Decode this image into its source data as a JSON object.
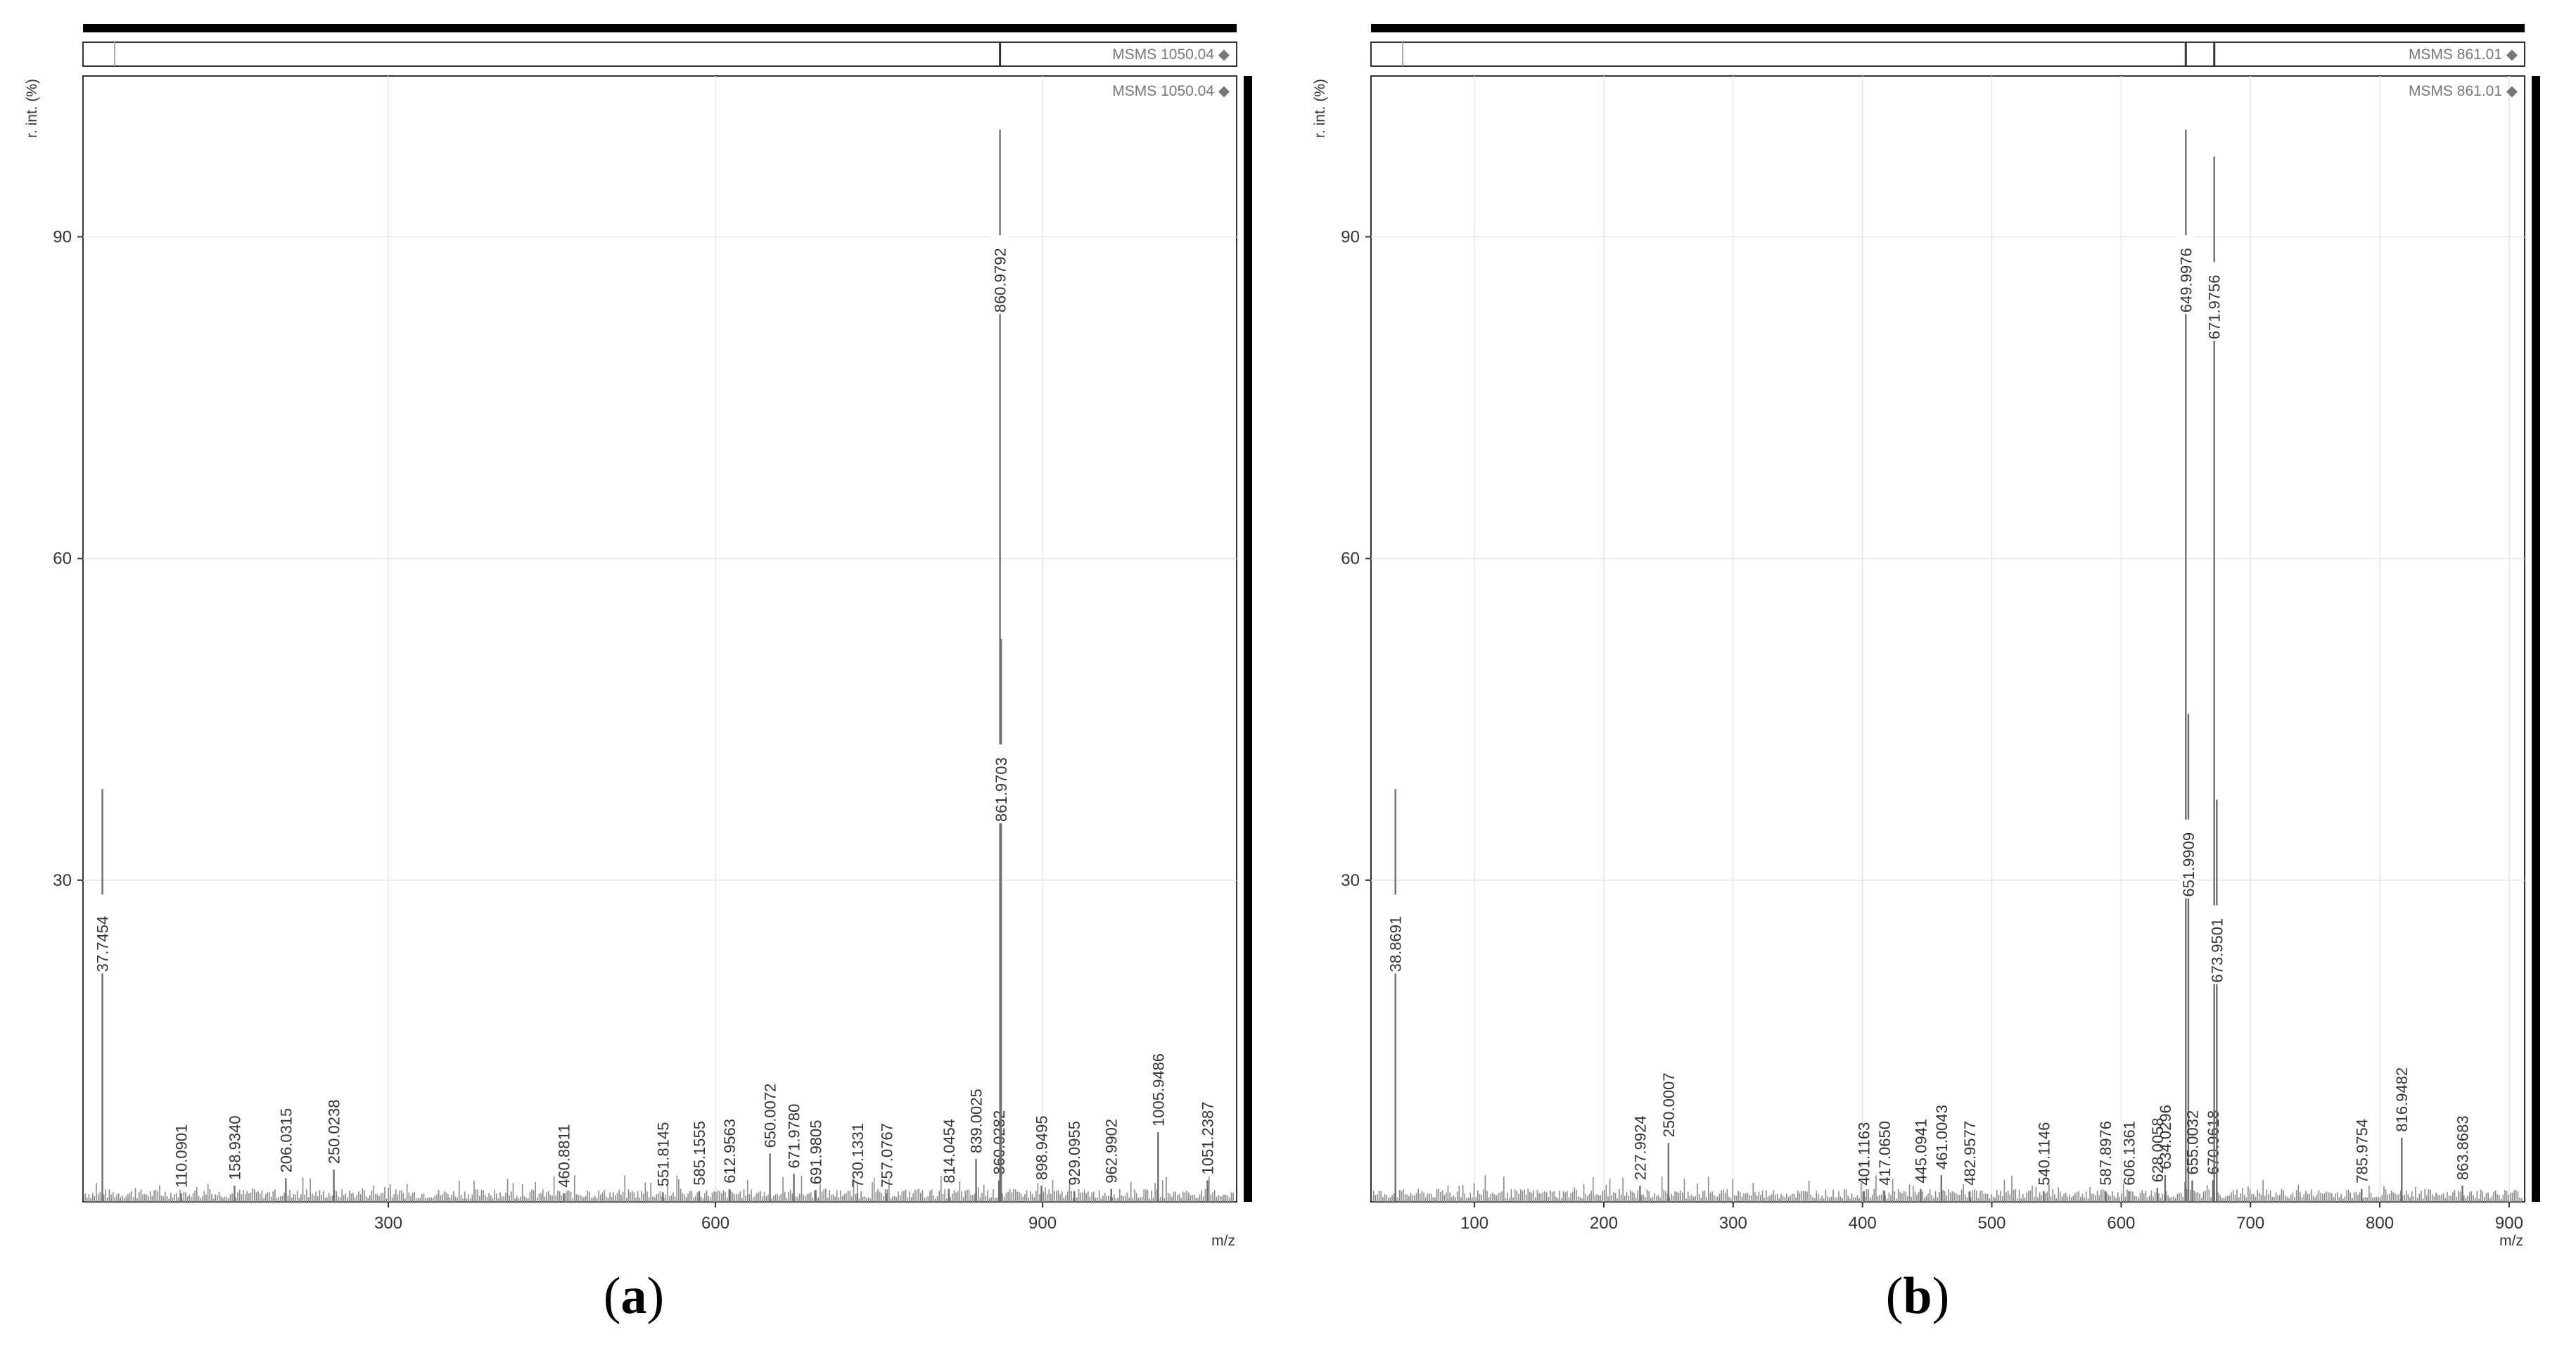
{
  "panels": [
    {
      "label_open": "(",
      "label_letter": "a",
      "label_close": ")",
      "header_label": "MSMS 1050.04",
      "plot_label": "MSMS 1050.04",
      "chart_data": {
        "type": "bar",
        "title": "",
        "xlabel": "m/z",
        "ylabel": "r. int. (%)",
        "xlim": [
          20,
          1078
        ],
        "ylim": [
          0,
          105
        ],
        "x_ticks": [
          300,
          600,
          900
        ],
        "y_ticks": [
          30,
          60,
          90
        ],
        "grid": true,
        "labeled_peaks": [
          {
            "mz": 37.7454,
            "label": "37.7454",
            "intensity": 38.5
          },
          {
            "mz": 110.0901,
            "label": "110.0901",
            "intensity": 0.8
          },
          {
            "mz": 158.934,
            "label": "158.9340",
            "intensity": 1.5
          },
          {
            "mz": 206.0315,
            "label": "206.0315",
            "intensity": 2.2
          },
          {
            "mz": 250.0238,
            "label": "250.0238",
            "intensity": 3.0
          },
          {
            "mz": 460.8811,
            "label": "460.8811",
            "intensity": 0.8
          },
          {
            "mz": 551.8145,
            "label": "551.8145",
            "intensity": 0.9
          },
          {
            "mz": 585.1555,
            "label": "585.1555",
            "intensity": 1.0
          },
          {
            "mz": 612.9563,
            "label": "612.9563",
            "intensity": 1.2
          },
          {
            "mz": 650.0072,
            "label": "650.0072",
            "intensity": 4.5
          },
          {
            "mz": 671.978,
            "label": "671.9780",
            "intensity": 2.6
          },
          {
            "mz": 691.9805,
            "label": "691.9805",
            "intensity": 1.1
          },
          {
            "mz": 730.1331,
            "label": "730.1331",
            "intensity": 0.8
          },
          {
            "mz": 757.0767,
            "label": "757.0767",
            "intensity": 0.8
          },
          {
            "mz": 814.0454,
            "label": "814.0454",
            "intensity": 1.2
          },
          {
            "mz": 839.0025,
            "label": "839.0025",
            "intensity": 4.0
          },
          {
            "mz": 860.0282,
            "label": "860.0282",
            "intensity": 2.0
          },
          {
            "mz": 860.9792,
            "label": "860.9792",
            "intensity": 100
          },
          {
            "mz": 861.9703,
            "label": "861.9703",
            "intensity": 52.5
          },
          {
            "mz": 898.9495,
            "label": "898.9495",
            "intensity": 1.5
          },
          {
            "mz": 929.0955,
            "label": "929.0955",
            "intensity": 1.0
          },
          {
            "mz": 962.9902,
            "label": "962.9902",
            "intensity": 1.2
          },
          {
            "mz": 1005.9486,
            "label": "1005.9486",
            "intensity": 6.5
          },
          {
            "mz": 1051.2387,
            "label": "1051.2387",
            "intensity": 2.0
          }
        ]
      }
    },
    {
      "label_open": "(",
      "label_letter": "b",
      "label_close": ")",
      "header_label": "MSMS 861.01",
      "plot_label": "MSMS 861.01",
      "chart_data": {
        "type": "bar",
        "title": "",
        "xlabel": "m/z",
        "ylabel": "r. int. (%)",
        "xlim": [
          20,
          912
        ],
        "ylim": [
          0,
          105
        ],
        "x_ticks": [
          100,
          200,
          300,
          400,
          500,
          600,
          700,
          800,
          900
        ],
        "y_ticks": [
          30,
          60,
          90
        ],
        "grid": true,
        "labeled_peaks": [
          {
            "mz": 38.8691,
            "label": "38.8691",
            "intensity": 38.5
          },
          {
            "mz": 227.9924,
            "label": "227.9924",
            "intensity": 1.5
          },
          {
            "mz": 250.0007,
            "label": "250.0007",
            "intensity": 5.5
          },
          {
            "mz": 401.1163,
            "label": "401.1163",
            "intensity": 1.0
          },
          {
            "mz": 417.065,
            "label": "417.0650",
            "intensity": 1.0
          },
          {
            "mz": 445.0941,
            "label": "445.0941",
            "intensity": 1.2
          },
          {
            "mz": 461.0043,
            "label": "461.0043",
            "intensity": 2.5
          },
          {
            "mz": 482.9577,
            "label": "482.9577",
            "intensity": 1.0
          },
          {
            "mz": 540.1146,
            "label": "540.1146",
            "intensity": 1.0
          },
          {
            "mz": 587.8976,
            "label": "587.8976",
            "intensity": 1.0
          },
          {
            "mz": 606.1361,
            "label": "606.1361",
            "intensity": 1.0
          },
          {
            "mz": 628.0058,
            "label": "628.0058",
            "intensity": 1.3
          },
          {
            "mz": 634.0296,
            "label": "634.0296",
            "intensity": 2.5
          },
          {
            "mz": 649.9976,
            "label": "649.9976",
            "intensity": 100
          },
          {
            "mz": 651.9909,
            "label": "651.9909",
            "intensity": 45.5
          },
          {
            "mz": 655.0032,
            "label": "655.0032",
            "intensity": 2.0
          },
          {
            "mz": 670.9618,
            "label": "670.9618",
            "intensity": 2.0
          },
          {
            "mz": 671.9756,
            "label": "671.9756",
            "intensity": 97.5
          },
          {
            "mz": 673.9501,
            "label": "673.9501",
            "intensity": 37.5
          },
          {
            "mz": 785.9754,
            "label": "785.9754",
            "intensity": 1.2
          },
          {
            "mz": 816.9482,
            "label": "816.9482",
            "intensity": 6.0
          },
          {
            "mz": 863.8683,
            "label": "863.8683",
            "intensity": 1.5
          }
        ]
      }
    }
  ]
}
